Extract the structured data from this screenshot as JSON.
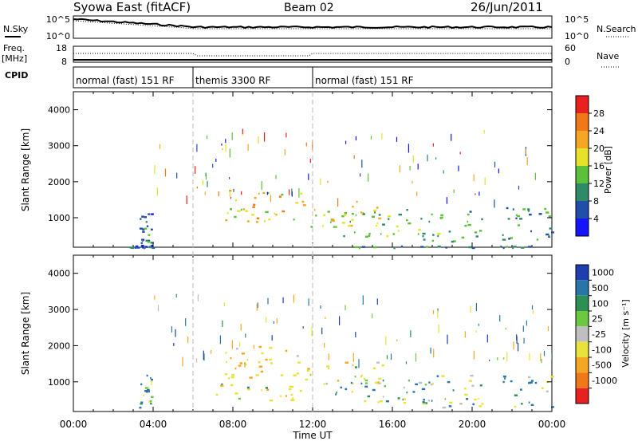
{
  "header": {
    "title": "Syowa East (fitACF)",
    "beam": "Beam 02",
    "date": "26/Jun/2011"
  },
  "summary": {
    "nsky_label": "N.Sky",
    "nsearch_label": "N.Search",
    "freq_label": "Freq.",
    "freq_unit": "[MHz]",
    "cpid_label": "CPID",
    "nave_label": "Nave",
    "noise_ticks_left": [
      "10^5",
      "10^0"
    ],
    "noise_ticks_right": [
      "10^5",
      "10^0"
    ],
    "freq_ticks_left": [
      "18",
      "8"
    ],
    "freq_ticks_right": [
      "60",
      "0"
    ]
  },
  "cpid_segments": [
    {
      "label": "normal (fast) 151 RF",
      "start_h": 0,
      "end_h": 6
    },
    {
      "label": "themis 3300 RF",
      "start_h": 6,
      "end_h": 12
    },
    {
      "label": "normal (fast) 151 RF",
      "start_h": 12,
      "end_h": 24
    }
  ],
  "axes": {
    "ylabel": "Slant Range [km]",
    "xlabel": "Time UT",
    "y_ticks": [
      "1000",
      "2000",
      "3000",
      "4000"
    ],
    "x_ticks": [
      "00:00",
      "04:00",
      "08:00",
      "12:00",
      "16:00",
      "20:00",
      "00:00"
    ]
  },
  "colorbars": {
    "power": {
      "label": "Power [dB]",
      "ticks": [
        "4",
        "8",
        "12",
        "16",
        "20",
        "24",
        "28"
      ],
      "colors": [
        "#1414ff",
        "#1f4fa8",
        "#2f8a6a",
        "#5cc03a",
        "#e6e22a",
        "#f5a623",
        "#f07818",
        "#e82020"
      ]
    },
    "velocity": {
      "label": "Velocity [m s⁻¹]",
      "ticks": [
        "1000",
        "500",
        "100",
        "25",
        "-25",
        "-100",
        "-500",
        "-1000"
      ],
      "colors": [
        "#1e3fb0",
        "#2a75a8",
        "#2e8f55",
        "#6cc840",
        "#bfbfbf",
        "#e8e23a",
        "#f5a623",
        "#f07818",
        "#e82020"
      ]
    }
  },
  "chart_data": [
    {
      "type": "heatmap",
      "name": "Power",
      "xlabel": "Time UT",
      "ylabel": "Slant Range [km]",
      "xlim": [
        0,
        24
      ],
      "ylim": [
        180,
        4500
      ],
      "clim": [
        0,
        30
      ],
      "unit": "dB",
      "regions": [
        {
          "t": [
            7.5,
            11.5
          ],
          "r": [
            900,
            1800
          ],
          "value": 20
        },
        {
          "t": [
            11.5,
            15.5
          ],
          "r": [
            700,
            1500
          ],
          "value": 18
        },
        {
          "t": [
            13.5,
            17.5
          ],
          "r": [
            500,
            1300
          ],
          "value": 14
        },
        {
          "t": [
            17.5,
            20.5
          ],
          "r": [
            300,
            1200
          ],
          "value": 12
        },
        {
          "t": [
            21.5,
            24
          ],
          "r": [
            300,
            1500
          ],
          "value": 10
        },
        {
          "t": [
            3.3,
            3.9
          ],
          "r": [
            300,
            1200
          ],
          "value": 8
        },
        {
          "t": [
            2.8,
            4.0
          ],
          "r": [
            180,
            250
          ],
          "value": 6
        },
        {
          "t": [
            14.0,
            24.0
          ],
          "r": [
            180,
            230
          ],
          "value": 10
        }
      ]
    },
    {
      "type": "heatmap",
      "name": "Velocity",
      "xlabel": "Time UT",
      "ylabel": "Slant Range [km]",
      "xlim": [
        0,
        24
      ],
      "ylim": [
        180,
        4500
      ],
      "clim": [
        -1000,
        1000
      ],
      "unit": "m s-1",
      "regions": [
        {
          "t": [
            7.5,
            11.5
          ],
          "r": [
            1100,
            2000
          ],
          "value": -400
        },
        {
          "t": [
            7.0,
            12.0
          ],
          "r": [
            500,
            1000
          ],
          "value": -200
        },
        {
          "t": [
            11.5,
            15.5
          ],
          "r": [
            900,
            1600
          ],
          "value": -300
        },
        {
          "t": [
            13.0,
            18.0
          ],
          "r": [
            400,
            1100
          ],
          "value": 80
        },
        {
          "t": [
            17.5,
            21.0
          ],
          "r": [
            300,
            1200
          ],
          "value": 60
        },
        {
          "t": [
            21.5,
            24
          ],
          "r": [
            300,
            1200
          ],
          "value": 150
        },
        {
          "t": [
            3.3,
            3.9
          ],
          "r": [
            300,
            1200
          ],
          "value": 100
        }
      ]
    }
  ]
}
